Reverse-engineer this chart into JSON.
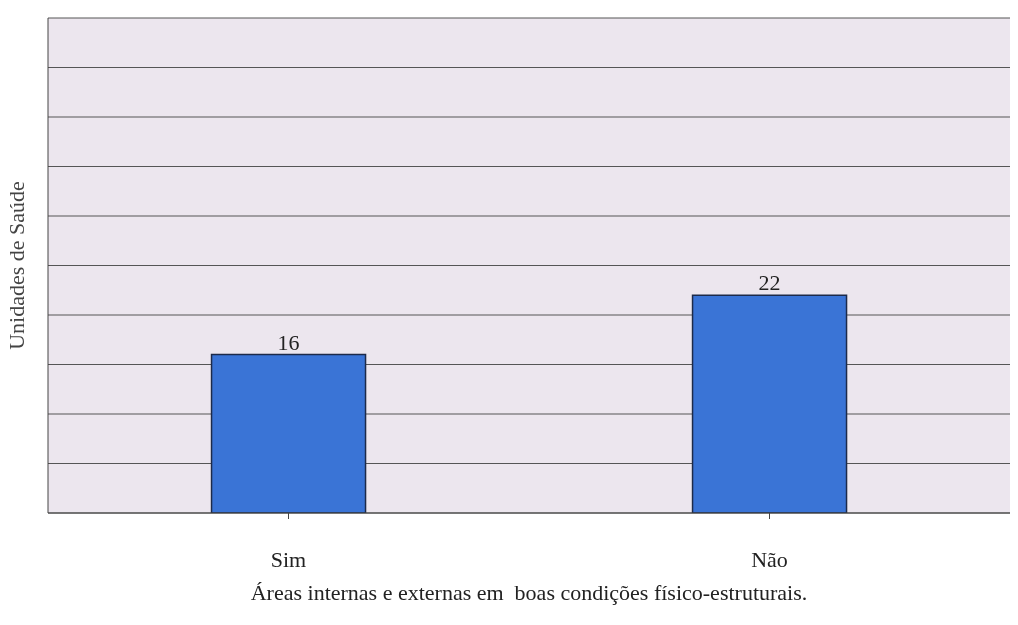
{
  "chart_data": {
    "type": "bar",
    "xlabel": "Áreas internas e externas em  boas condições físico-estruturais.",
    "ylabel": "Unidades de Saúde",
    "categories": [
      "Sim",
      "Não"
    ],
    "values": [
      16,
      22
    ],
    "color": "#3a74d6",
    "ylim": [
      0,
      50
    ],
    "yticks": [
      {
        "value": 0,
        "label": null
      },
      {
        "value": 5,
        "label": null
      },
      {
        "value": 10,
        "label": null
      },
      {
        "value": 15,
        "label": null
      },
      {
        "value": 20,
        "label": null
      },
      {
        "value": 25,
        "label": null
      },
      {
        "value": 30,
        "label": null
      },
      {
        "value": 35,
        "label": null
      },
      {
        "value": 40,
        "label": null
      },
      {
        "value": 45,
        "label": null
      },
      {
        "value": 50,
        "label": null
      }
    ],
    "grid": "y",
    "data_labels": true,
    "tick_labels": "x"
  }
}
